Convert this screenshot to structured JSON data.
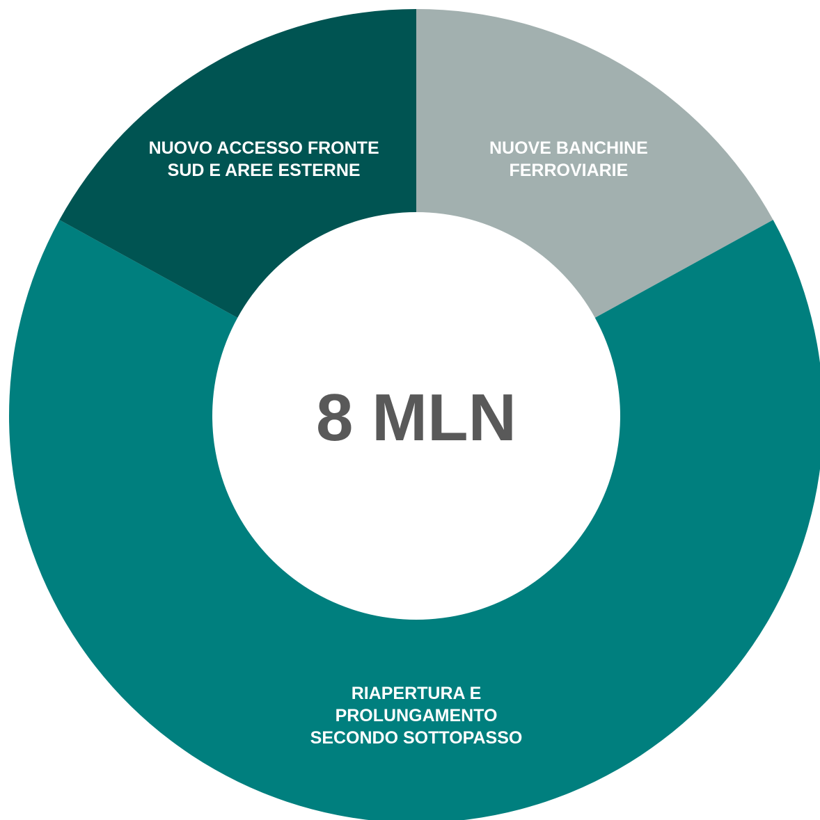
{
  "chart_data": {
    "type": "pie",
    "donut": true,
    "center_label": "8 MLN",
    "slices": [
      {
        "name": "NUOVE BANCHINE FERROVIARIE",
        "label_lines": [
          "NUOVE BANCHINE",
          "FERROVIARIE"
        ],
        "value": 0.17,
        "color": "#a2b0af"
      },
      {
        "name": "RIAPERTURA E PROLUNGAMENTO SECONDO SOTTOPASSO",
        "label_lines": [
          "RIAPERTURA E",
          "PROLUNGAMENTO",
          "SECONDO SOTTOPASSO"
        ],
        "value": 0.66,
        "color": "#007f7e"
      },
      {
        "name": "NUOVO ACCESSO FRONTE SUD E AREE ESTERNE",
        "label_lines": [
          "NUOVO ACCESSO FRONTE",
          "SUD E AREE ESTERNE"
        ],
        "value": 0.17,
        "color": "#005452"
      }
    ]
  }
}
